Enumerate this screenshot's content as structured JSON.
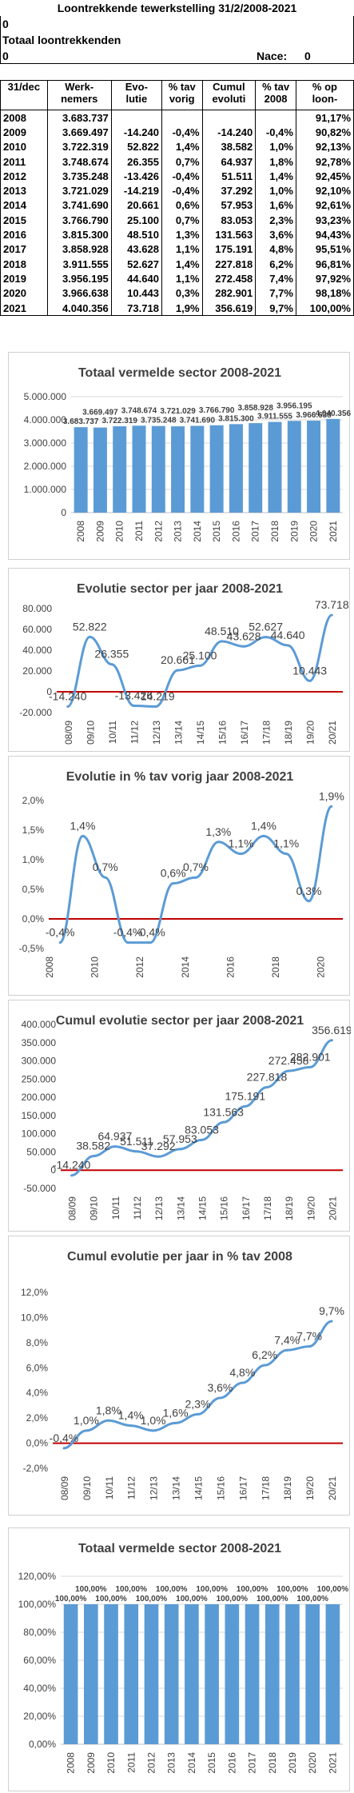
{
  "header": {
    "title": "Loontrekkende tewerkstelling 31/2/2008-2021",
    "line1": "0",
    "line2": "Totaal loontrekkenden",
    "line3_left": "0",
    "nace_label": "Nace:",
    "nace_value": "0"
  },
  "table": {
    "columns": [
      "31/dec",
      "Werk-\nnemers",
      "Evo-\nlutie",
      "% tav\nvorig",
      "Cumul\nevoluti",
      "% tav\n2008",
      "% op\nloon-"
    ],
    "rows": [
      [
        "2008",
        "3.683.737",
        "",
        "",
        "",
        "",
        "91,17%"
      ],
      [
        "2009",
        "3.669.497",
        "-14.240",
        "-0,4%",
        "-14.240",
        "-0,4%",
        "90,82%"
      ],
      [
        "2010",
        "3.722.319",
        "52.822",
        "1,4%",
        "38.582",
        "1,0%",
        "92,13%"
      ],
      [
        "2011",
        "3.748.674",
        "26.355",
        "0,7%",
        "64.937",
        "1,8%",
        "92,78%"
      ],
      [
        "2012",
        "3.735.248",
        "-13.426",
        "-0,4%",
        "51.511",
        "1,4%",
        "92,45%"
      ],
      [
        "2013",
        "3.721.029",
        "-14.219",
        "-0,4%",
        "37.292",
        "1,0%",
        "92,10%"
      ],
      [
        "2014",
        "3.741.690",
        "20.661",
        "0,6%",
        "57.953",
        "1,6%",
        "92,61%"
      ],
      [
        "2015",
        "3.766.790",
        "25.100",
        "0,7%",
        "83.053",
        "2,3%",
        "93,23%"
      ],
      [
        "2016",
        "3.815.300",
        "48.510",
        "1,3%",
        "131.563",
        "3,6%",
        "94,43%"
      ],
      [
        "2017",
        "3.858.928",
        "43.628",
        "1,1%",
        "175.191",
        "4,8%",
        "95,51%"
      ],
      [
        "2018",
        "3.911.555",
        "52.627",
        "1,4%",
        "227.818",
        "6,2%",
        "96,81%"
      ],
      [
        "2019",
        "3.956.195",
        "44.640",
        "1,1%",
        "272.458",
        "7,4%",
        "97,92%"
      ],
      [
        "2020",
        "3.966.638",
        "10.443",
        "0,3%",
        "282.901",
        "7,7%",
        "98,18%"
      ],
      [
        "2021",
        "4.040.356",
        "73.718",
        "1,9%",
        "356.619",
        "9,7%",
        "100,00%"
      ]
    ]
  },
  "colors": {
    "bar": "#5b9bd5",
    "line": "#5b9bd5",
    "zero_line": "#c00000",
    "grid": "#d9d9d9",
    "text": "#404040"
  },
  "chart_data": [
    {
      "type": "bar",
      "title": "Totaal vermelde sector 2008-2021",
      "categories": [
        "2008",
        "2009",
        "2010",
        "2011",
        "2012",
        "2013",
        "2014",
        "2015",
        "2016",
        "2017",
        "2018",
        "2019",
        "2020",
        "2021"
      ],
      "values": [
        3683737,
        3669497,
        3722319,
        3748674,
        3735248,
        3721029,
        3741690,
        3766790,
        3815300,
        3858928,
        3911555,
        3956195,
        3966638,
        4040356
      ],
      "labels": [
        "3.683.737",
        "3.669.497",
        "3.722.319",
        "3.748.674",
        "3.735.248",
        "3.721.029",
        "3.741.690",
        "3.766.790",
        "3.815.300",
        "3.858.928",
        "3.911.555",
        "3.956.195",
        "3.966.638",
        "4.040.356"
      ],
      "yticks": [
        "0",
        "1.000.000",
        "2.000.000",
        "3.000.000",
        "4.000.000",
        "5.000.000"
      ],
      "ylim": [
        0,
        5000000
      ],
      "grid": true
    },
    {
      "type": "line",
      "title": "Evolutie sector per jaar 2008-2021",
      "categories": [
        "08/09",
        "09/10",
        "10/11",
        "11/12",
        "12/13",
        "13/14",
        "14/15",
        "15/16",
        "16/17",
        "17/18",
        "18/19",
        "19/20",
        "20/21"
      ],
      "values": [
        -14240,
        52822,
        26355,
        -13426,
        -14219,
        20661,
        25100,
        48510,
        43628,
        52627,
        44640,
        10443,
        73718
      ],
      "labels": [
        "-14.240",
        "52.822",
        "26.355",
        "-13.426",
        "-14.219",
        "20.661",
        "25.100",
        "48.510",
        "43.628",
        "52.627",
        "44.640",
        "10.443",
        "73.718"
      ],
      "yticks": [
        "-20.000",
        "0",
        "20.000",
        "40.000",
        "60.000",
        "80.000"
      ],
      "ylim": [
        -20000,
        80000
      ],
      "zero_line": true
    },
    {
      "type": "line",
      "title": "Evolutie in % tav vorig jaar 2008-2021",
      "categories": [
        "2008",
        "2010",
        "2012",
        "2014",
        "2016",
        "2018",
        "2020"
      ],
      "x": [
        "2009",
        "2010",
        "2011",
        "2012",
        "2013",
        "2014",
        "2015",
        "2016",
        "2017",
        "2018",
        "2019",
        "2020",
        "2021"
      ],
      "values": [
        -0.4,
        1.4,
        0.7,
        -0.4,
        -0.4,
        0.6,
        0.7,
        1.3,
        1.1,
        1.4,
        1.1,
        0.3,
        1.9
      ],
      "labels": [
        "-0,4%",
        "1,4%",
        "0,7%",
        "-0,4%",
        "-0,4%",
        "0,6%",
        "0,7%",
        "1,3%",
        "1,1%",
        "1,4%",
        "1,1%",
        "0,3%",
        "1,9%"
      ],
      "yticks": [
        "-0,5%",
        "0,0%",
        "0,5%",
        "1,0%",
        "1,5%",
        "2,0%"
      ],
      "ylim": [
        -0.5,
        2.0
      ],
      "zero_line": true
    },
    {
      "type": "line",
      "title": "Cumul evolutie sector per jaar 2008-2021",
      "categories": [
        "08/09",
        "09/10",
        "10/11",
        "11/12",
        "12/13",
        "13/14",
        "14/15",
        "15/16",
        "16/17",
        "17/18",
        "18/19",
        "19/20",
        "20/21"
      ],
      "values": [
        -14240,
        38582,
        64937,
        51511,
        37292,
        57953,
        83053,
        131563,
        175191,
        227818,
        272458,
        282901,
        356619
      ],
      "labels": [
        "-14.240",
        "38.582",
        "64.937",
        "51.511",
        "37.292",
        "57.953",
        "83.053",
        "131.563",
        "175.191",
        "227.818",
        "272.458",
        "282.901",
        "356.619"
      ],
      "yticks": [
        "-50.000",
        "0",
        "50.000",
        "100.000",
        "150.000",
        "200.000",
        "250.000",
        "300.000",
        "350.000",
        "400.000"
      ],
      "ylim": [
        -50000,
        400000
      ],
      "zero_line": true
    },
    {
      "type": "line",
      "title": "Cumul evolutie per jaar in % tav 2008",
      "categories": [
        "08/09",
        "09/10",
        "10/11",
        "11/12",
        "12/13",
        "13/14",
        "14/15",
        "15/16",
        "16/17",
        "17/18",
        "18/19",
        "19/20",
        "20/21"
      ],
      "values": [
        -0.4,
        1.0,
        1.8,
        1.4,
        1.0,
        1.6,
        2.3,
        3.6,
        4.8,
        6.2,
        7.4,
        7.7,
        9.7
      ],
      "labels": [
        "-0,4%",
        "1,0%",
        "1,8%",
        "1,4%",
        "1,0%",
        "1,6%",
        "2,3%",
        "3,6%",
        "4,8%",
        "6,2%",
        "7,4%",
        "7,7%",
        "9,7%"
      ],
      "yticks": [
        "-2,0%",
        "0,0%",
        "2,0%",
        "4,0%",
        "6,0%",
        "8,0%",
        "10,0%",
        "12,0%"
      ],
      "ylim": [
        -2.0,
        12.0
      ],
      "zero_line": true
    },
    {
      "type": "bar",
      "title": "Totaal vermelde sector 2008-2021",
      "categories": [
        "2008",
        "2009",
        "2010",
        "2011",
        "2012",
        "2013",
        "2014",
        "2015",
        "2016",
        "2017",
        "2018",
        "2019",
        "2020",
        "2021"
      ],
      "values": [
        100,
        100,
        100,
        100,
        100,
        100,
        100,
        100,
        100,
        100,
        100,
        100,
        100,
        100
      ],
      "labels": [
        "100,00%",
        "100,00%",
        "100,00%",
        "100,00%",
        "100,00%",
        "100,00%",
        "100,00%",
        "100,00%",
        "100,00%",
        "100,00%",
        "100,00%",
        "100,00%",
        "100,00%",
        "100,00%"
      ],
      "yticks": [
        "0,00%",
        "20,00%",
        "40,00%",
        "60,00%",
        "80,00%",
        "100,00%",
        "120,00%"
      ],
      "ylim": [
        0,
        120
      ],
      "grid": true
    }
  ]
}
